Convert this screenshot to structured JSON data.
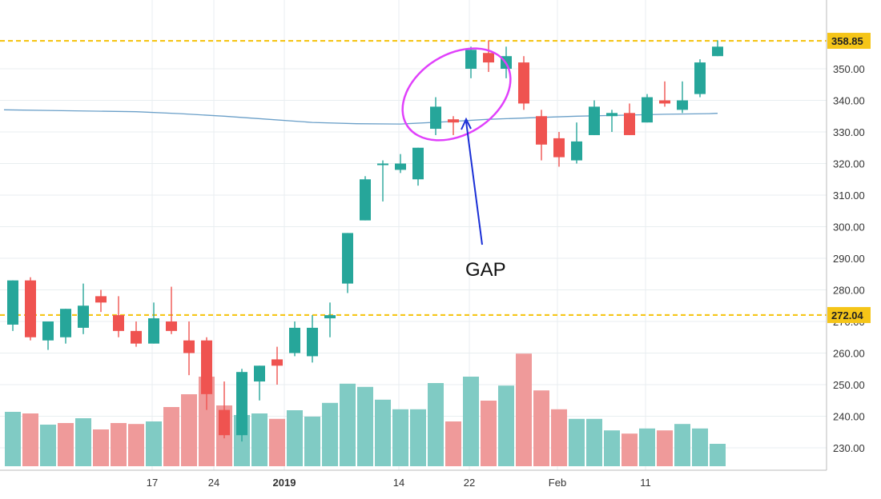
{
  "chart_data": {
    "type": "candlestick",
    "annotation": "GAP",
    "y_axis": {
      "ticks": [
        "230.00",
        "240.00",
        "250.00",
        "260.00",
        "270.00",
        "280.00",
        "290.00",
        "300.00",
        "310.00",
        "320.00",
        "330.00",
        "340.00",
        "350.00"
      ],
      "range": [
        225,
        362
      ]
    },
    "x_axis": {
      "ticks": [
        {
          "label": "17",
          "day": 17,
          "bold": false
        },
        {
          "label": "24",
          "day": 24,
          "bold": false
        },
        {
          "label": "2019",
          "day": 32,
          "bold": true
        },
        {
          "label": "14",
          "day": 45,
          "bold": false
        },
        {
          "label": "22",
          "day": 53,
          "bold": false
        },
        {
          "label": "Feb",
          "day": 63,
          "bold": false
        },
        {
          "label": "11",
          "day": 73,
          "bold": false
        }
      ]
    },
    "horizontal_lines": [
      {
        "value": 358.85,
        "label": "358.85",
        "color": "#f5c518"
      },
      {
        "value": 272.04,
        "label": "272.04",
        "color": "#f5c518"
      }
    ],
    "colors": {
      "up": "#26a69a",
      "down": "#ef5350",
      "up_volume": "#80cbc4",
      "down_volume": "#ef9a9a",
      "ma": "#6a9fc8",
      "annotation_circle": "#e040fb",
      "annotation_arrow": "#1a2fd6"
    },
    "candles": [
      {
        "day": 1,
        "o": 269,
        "h": 283,
        "l": 267,
        "c": 283
      },
      {
        "day": 3,
        "o": 283,
        "h": 284,
        "l": 264,
        "c": 265
      },
      {
        "day": 5,
        "o": 264,
        "h": 270,
        "l": 261,
        "c": 270
      },
      {
        "day": 7,
        "o": 265,
        "h": 274,
        "l": 263,
        "c": 274
      },
      {
        "day": 9,
        "o": 268,
        "h": 282,
        "l": 266,
        "c": 275
      },
      {
        "day": 11,
        "o": 278,
        "h": 280,
        "l": 273,
        "c": 276
      },
      {
        "day": 13,
        "o": 272,
        "h": 278,
        "l": 265,
        "c": 267
      },
      {
        "day": 15,
        "o": 267,
        "h": 270,
        "l": 262,
        "c": 263
      },
      {
        "day": 17,
        "o": 263,
        "h": 276,
        "l": 263,
        "c": 271
      },
      {
        "day": 19,
        "o": 270,
        "h": 281,
        "l": 266,
        "c": 267
      },
      {
        "day": 21,
        "o": 264,
        "h": 270,
        "l": 253,
        "c": 260
      },
      {
        "day": 23,
        "o": 264,
        "h": 265,
        "l": 242,
        "c": 247
      },
      {
        "day": 25,
        "o": 242,
        "h": 251,
        "l": 233,
        "c": 234
      },
      {
        "day": 27,
        "o": 234,
        "h": 255,
        "l": 232,
        "c": 254
      },
      {
        "day": 29,
        "o": 251,
        "h": 256,
        "l": 245,
        "c": 256
      },
      {
        "day": 31,
        "o": 258,
        "h": 262,
        "l": 250,
        "c": 256
      },
      {
        "day": 33,
        "o": 260,
        "h": 270,
        "l": 259,
        "c": 268
      },
      {
        "day": 35,
        "o": 259,
        "h": 272,
        "l": 257,
        "c": 268
      },
      {
        "day": 37,
        "o": 271,
        "h": 276,
        "l": 265,
        "c": 272
      },
      {
        "day": 39,
        "o": 282,
        "h": 298,
        "l": 279,
        "c": 298
      },
      {
        "day": 41,
        "o": 302,
        "h": 316,
        "l": 302,
        "c": 315
      },
      {
        "day": 43,
        "o": 320,
        "h": 321,
        "l": 308,
        "c": 320
      },
      {
        "day": 45,
        "o": 318,
        "h": 323,
        "l": 317,
        "c": 320
      },
      {
        "day": 47,
        "o": 315,
        "h": 325,
        "l": 313,
        "c": 325
      },
      {
        "day": 49,
        "o": 331,
        "h": 341,
        "l": 329,
        "c": 338
      },
      {
        "day": 51,
        "o": 334,
        "h": 335,
        "l": 329,
        "c": 333
      },
      {
        "day": 53,
        "o": 350,
        "h": 357,
        "l": 347,
        "c": 356
      },
      {
        "day": 55,
        "o": 355,
        "h": 359,
        "l": 349,
        "c": 352
      },
      {
        "day": 57,
        "o": 350,
        "h": 357,
        "l": 347,
        "c": 354
      },
      {
        "day": 59,
        "o": 352,
        "h": 354,
        "l": 337,
        "c": 339
      },
      {
        "day": 61,
        "o": 335,
        "h": 337,
        "l": 321,
        "c": 326
      },
      {
        "day": 63,
        "o": 328,
        "h": 330,
        "l": 319,
        "c": 322
      },
      {
        "day": 65,
        "o": 321,
        "h": 333,
        "l": 320,
        "c": 327
      },
      {
        "day": 67,
        "o": 329,
        "h": 340,
        "l": 329,
        "c": 338
      },
      {
        "day": 69,
        "o": 335,
        "h": 337,
        "l": 330,
        "c": 336
      },
      {
        "day": 71,
        "o": 336,
        "h": 339,
        "l": 329,
        "c": 329
      },
      {
        "day": 73,
        "o": 333,
        "h": 342,
        "l": 333,
        "c": 341
      },
      {
        "day": 75,
        "o": 340,
        "h": 346,
        "l": 338,
        "c": 339
      },
      {
        "day": 77,
        "o": 337,
        "h": 346,
        "l": 336,
        "c": 340
      },
      {
        "day": 79,
        "o": 342,
        "h": 353,
        "l": 341,
        "c": 352
      },
      {
        "day": 81,
        "o": 354,
        "h": 359,
        "l": 354,
        "c": 357
      }
    ],
    "volume_units": "relative",
    "volumes": [
      {
        "day": 1,
        "v": 17,
        "up": true
      },
      {
        "day": 3,
        "v": 16.5,
        "up": false
      },
      {
        "day": 5,
        "v": 13,
        "up": true
      },
      {
        "day": 7,
        "v": 13.5,
        "up": false
      },
      {
        "day": 9,
        "v": 15,
        "up": true
      },
      {
        "day": 11,
        "v": 11.5,
        "up": false
      },
      {
        "day": 13,
        "v": 13.5,
        "up": false
      },
      {
        "day": 15,
        "v": 13.2,
        "up": false
      },
      {
        "day": 17,
        "v": 14,
        "up": true
      },
      {
        "day": 19,
        "v": 18.5,
        "up": false
      },
      {
        "day": 21,
        "v": 22.5,
        "up": false
      },
      {
        "day": 23,
        "v": 28,
        "up": false
      },
      {
        "day": 25,
        "v": 19,
        "up": false
      },
      {
        "day": 27,
        "v": 16,
        "up": true
      },
      {
        "day": 29,
        "v": 16.5,
        "up": true
      },
      {
        "day": 31,
        "v": 14.8,
        "up": false
      },
      {
        "day": 33,
        "v": 17.5,
        "up": true
      },
      {
        "day": 35,
        "v": 15.5,
        "up": true
      },
      {
        "day": 37,
        "v": 19.8,
        "up": true
      },
      {
        "day": 39,
        "v": 25.8,
        "up": true
      },
      {
        "day": 41,
        "v": 24.8,
        "up": true
      },
      {
        "day": 43,
        "v": 20.8,
        "up": true
      },
      {
        "day": 45,
        "v": 17.8,
        "up": true
      },
      {
        "day": 47,
        "v": 17.8,
        "up": true
      },
      {
        "day": 49,
        "v": 26,
        "up": true
      },
      {
        "day": 51,
        "v": 14,
        "up": false
      },
      {
        "day": 53,
        "v": 28,
        "up": true
      },
      {
        "day": 55,
        "v": 20.5,
        "up": false
      },
      {
        "day": 57,
        "v": 25.2,
        "up": true
      },
      {
        "day": 59,
        "v": 35.2,
        "up": false
      },
      {
        "day": 61,
        "v": 23.7,
        "up": false
      },
      {
        "day": 63,
        "v": 17.8,
        "up": false
      },
      {
        "day": 65,
        "v": 14.8,
        "up": true
      },
      {
        "day": 67,
        "v": 14.8,
        "up": true
      },
      {
        "day": 69,
        "v": 11.2,
        "up": true
      },
      {
        "day": 71,
        "v": 10.2,
        "up": false
      },
      {
        "day": 73,
        "v": 11.8,
        "up": true
      },
      {
        "day": 75,
        "v": 11.2,
        "up": false
      },
      {
        "day": 77,
        "v": 13.2,
        "up": true
      },
      {
        "day": 79,
        "v": 11.8,
        "up": true
      },
      {
        "day": 81,
        "v": 7,
        "up": true
      }
    ],
    "moving_average": [
      {
        "day": 0,
        "v": 337
      },
      {
        "day": 5,
        "v": 336.8
      },
      {
        "day": 15,
        "v": 336.4
      },
      {
        "day": 20,
        "v": 335.8
      },
      {
        "day": 25,
        "v": 335
      },
      {
        "day": 30,
        "v": 334
      },
      {
        "day": 35,
        "v": 333
      },
      {
        "day": 40,
        "v": 332.6
      },
      {
        "day": 45,
        "v": 332.5
      },
      {
        "day": 50,
        "v": 333.2
      },
      {
        "day": 55,
        "v": 334
      },
      {
        "day": 60,
        "v": 334.5
      },
      {
        "day": 65,
        "v": 335
      },
      {
        "day": 70,
        "v": 335.3
      },
      {
        "day": 75,
        "v": 335.6
      },
      {
        "day": 80,
        "v": 335.8
      },
      {
        "day": 81,
        "v": 335.9
      }
    ]
  }
}
